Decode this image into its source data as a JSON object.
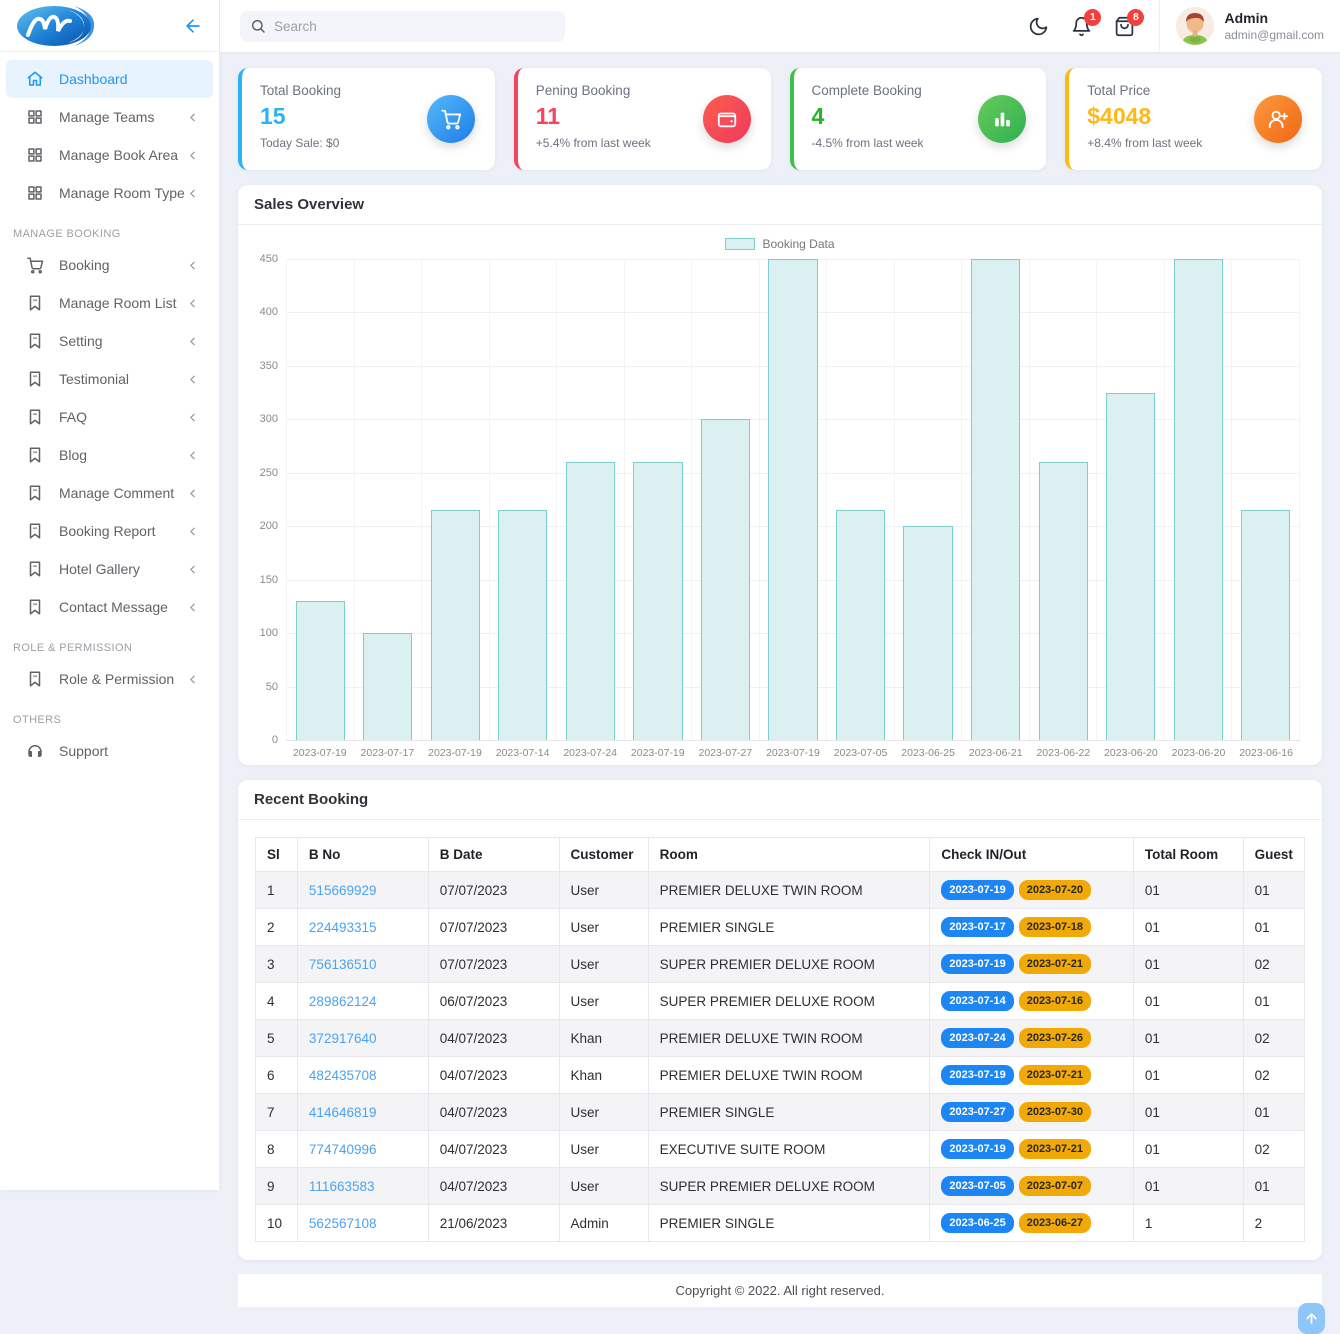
{
  "sidebar": {
    "sections": [
      {
        "label": "",
        "items": [
          {
            "label": "Dashboard",
            "icon": "home",
            "active": true,
            "chevron": false
          },
          {
            "label": "Manage Teams",
            "icon": "grid",
            "active": false,
            "chevron": true
          },
          {
            "label": "Manage Book Area",
            "icon": "grid",
            "active": false,
            "chevron": true
          },
          {
            "label": "Manage Room Type",
            "icon": "grid",
            "active": false,
            "chevron": true
          }
        ]
      },
      {
        "label": "MANAGE BOOKING",
        "items": [
          {
            "label": "Booking",
            "icon": "cart",
            "active": false,
            "chevron": true
          },
          {
            "label": "Manage Room List",
            "icon": "bookmark",
            "active": false,
            "chevron": true
          },
          {
            "label": "Setting",
            "icon": "bookmark",
            "active": false,
            "chevron": true
          },
          {
            "label": "Testimonial",
            "icon": "bookmark",
            "active": false,
            "chevron": true
          },
          {
            "label": "FAQ",
            "icon": "bookmark",
            "active": false,
            "chevron": true
          },
          {
            "label": "Blog",
            "icon": "bookmark",
            "active": false,
            "chevron": true
          },
          {
            "label": "Manage Comment",
            "icon": "bookmark",
            "active": false,
            "chevron": true
          },
          {
            "label": "Booking Report",
            "icon": "bookmark",
            "active": false,
            "chevron": true
          },
          {
            "label": "Hotel Gallery",
            "icon": "bookmark",
            "active": false,
            "chevron": true
          },
          {
            "label": "Contact Message",
            "icon": "bookmark",
            "active": false,
            "chevron": true
          }
        ]
      },
      {
        "label": "ROLE & PERMISSION",
        "items": [
          {
            "label": "Role & Permission",
            "icon": "bookmark",
            "active": false,
            "chevron": true
          }
        ]
      },
      {
        "label": "OTHERS",
        "items": [
          {
            "label": "Support",
            "icon": "headset",
            "active": false,
            "chevron": false
          }
        ]
      }
    ]
  },
  "header": {
    "search_placeholder": "Search",
    "bell_count": "1",
    "bag_count": "8",
    "user": {
      "name": "Admin",
      "email": "admin@gmail.com"
    }
  },
  "stat_cards": [
    {
      "label": "Total Booking",
      "value": "15",
      "sub": "Today Sale: $0",
      "accent": "#2bb3f4",
      "value_color": "#2bb3f4",
      "icon": "cart",
      "icon_bg1": "#55b9fa",
      "icon_bg2": "#1e7de6"
    },
    {
      "label": "Pening Booking",
      "value": "11",
      "sub": "+5.4% from last week",
      "accent": "#f4445e",
      "value_color": "#f4445e",
      "icon": "wallet",
      "icon_bg1": "#fa5e50",
      "icon_bg2": "#f2395b"
    },
    {
      "label": "Complete Booking",
      "value": "4",
      "sub": "-4.5% from last week",
      "accent": "#3fc04a",
      "value_color": "#27b42d",
      "icon": "bar-chart",
      "icon_bg1": "#67cd59",
      "icon_bg2": "#2fae52"
    },
    {
      "label": "Total Price",
      "value": "$4048",
      "sub": "+8.4% from last week",
      "accent": "#fcba12",
      "value_color": "#fcb918",
      "icon": "user-plus",
      "icon_bg1": "#fb9a3c",
      "icon_bg2": "#f26716"
    }
  ],
  "chart": {
    "title": "Sales Overview"
  },
  "chart_data": {
    "type": "bar",
    "title": "Sales Overview",
    "legend": "Booking Data",
    "legend_position": "top-center",
    "categories": [
      "2023-07-19",
      "2023-07-17",
      "2023-07-19",
      "2023-07-14",
      "2023-07-24",
      "2023-07-19",
      "2023-07-27",
      "2023-07-19",
      "2023-07-05",
      "2023-06-25",
      "2023-06-21",
      "2023-06-22",
      "2023-06-20",
      "2023-06-20",
      "2023-06-16"
    ],
    "values": [
      130,
      100,
      215,
      215,
      260,
      260,
      300,
      450,
      215,
      200,
      450,
      260,
      325,
      450,
      215
    ],
    "xlabel": "",
    "ylabel": "",
    "ylim": [
      0,
      450
    ],
    "ytick_step": 50,
    "grid": true,
    "bar_fill": "#dbf1f1",
    "bar_border": "#7bcecb"
  },
  "table": {
    "title": "Recent Booking",
    "columns": [
      "Sl",
      "B No",
      "B Date",
      "Customer",
      "Room",
      "Check IN/Out",
      "Total Room",
      "Guest"
    ],
    "badge_colors": {
      "check_in": "#1d86f5",
      "check_out": "#f1a907"
    },
    "rows": [
      {
        "sl": "1",
        "b_no": "515669929",
        "b_date": "07/07/2023",
        "customer": "User",
        "room": "PREMIER DELUXE TWIN ROOM",
        "check_in": "2023-07-19",
        "check_out": "2023-07-20",
        "total_room": "01",
        "guest": "01"
      },
      {
        "sl": "2",
        "b_no": "224493315",
        "b_date": "07/07/2023",
        "customer": "User",
        "room": "PREMIER SINGLE",
        "check_in": "2023-07-17",
        "check_out": "2023-07-18",
        "total_room": "01",
        "guest": "01"
      },
      {
        "sl": "3",
        "b_no": "756136510",
        "b_date": "07/07/2023",
        "customer": "User",
        "room": "SUPER PREMIER DELUXE ROOM",
        "check_in": "2023-07-19",
        "check_out": "2023-07-21",
        "total_room": "01",
        "guest": "02"
      },
      {
        "sl": "4",
        "b_no": "289862124",
        "b_date": "06/07/2023",
        "customer": "User",
        "room": "SUPER PREMIER DELUXE ROOM",
        "check_in": "2023-07-14",
        "check_out": "2023-07-16",
        "total_room": "01",
        "guest": "01"
      },
      {
        "sl": "5",
        "b_no": "372917640",
        "b_date": "04/07/2023",
        "customer": "Khan",
        "room": "PREMIER DELUXE TWIN ROOM",
        "check_in": "2023-07-24",
        "check_out": "2023-07-26",
        "total_room": "01",
        "guest": "02"
      },
      {
        "sl": "6",
        "b_no": "482435708",
        "b_date": "04/07/2023",
        "customer": "Khan",
        "room": "PREMIER DELUXE TWIN ROOM",
        "check_in": "2023-07-19",
        "check_out": "2023-07-21",
        "total_room": "01",
        "guest": "02"
      },
      {
        "sl": "7",
        "b_no": "414646819",
        "b_date": "04/07/2023",
        "customer": "User",
        "room": "PREMIER SINGLE",
        "check_in": "2023-07-27",
        "check_out": "2023-07-30",
        "total_room": "01",
        "guest": "01"
      },
      {
        "sl": "8",
        "b_no": "774740996",
        "b_date": "04/07/2023",
        "customer": "User",
        "room": "EXECUTIVE SUITE ROOM",
        "check_in": "2023-07-19",
        "check_out": "2023-07-21",
        "total_room": "01",
        "guest": "02"
      },
      {
        "sl": "9",
        "b_no": "111663583",
        "b_date": "04/07/2023",
        "customer": "User",
        "room": "SUPER PREMIER DELUXE ROOM",
        "check_in": "2023-07-05",
        "check_out": "2023-07-07",
        "total_room": "01",
        "guest": "01"
      },
      {
        "sl": "10",
        "b_no": "562567108",
        "b_date": "21/06/2023",
        "customer": "Admin",
        "room": "PREMIER SINGLE",
        "check_in": "2023-06-25",
        "check_out": "2023-06-27",
        "total_room": "1",
        "guest": "2"
      }
    ]
  },
  "footer": {
    "copyright": "Copyright © 2022. All right reserved."
  }
}
